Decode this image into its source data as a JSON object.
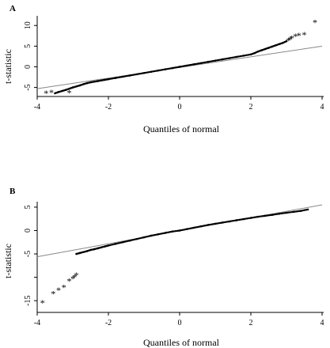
{
  "chart_data": [
    {
      "panel": "A",
      "type": "scatter",
      "title": "",
      "xlabel": "Quantiles of normal",
      "ylabel": "t-statistic",
      "xlim": [
        -4,
        4
      ],
      "ylim": [
        -6.8,
        11
      ],
      "xticks": [
        -4,
        -2,
        0,
        2,
        4
      ],
      "yticks": [
        -5,
        0,
        5,
        10
      ],
      "reference_line": {
        "x": [
          -4,
          4
        ],
        "y": [
          -5.3,
          5.0
        ]
      },
      "bulk_points": {
        "x": [
          -3.5,
          -3.4,
          -3.3,
          -3.2,
          -3.1,
          -3.0,
          -2.9,
          -2.8,
          -2.7,
          -2.6,
          -2.5,
          -2.4,
          -2.3,
          -2.2,
          -2.1,
          -2.0,
          -1.8,
          -1.6,
          -1.4,
          -1.2,
          -1.0,
          -0.8,
          -0.6,
          -0.4,
          -0.2,
          0.0,
          0.2,
          0.4,
          0.6,
          0.8,
          1.0,
          1.2,
          1.4,
          1.6,
          1.8,
          2.0,
          2.1,
          2.2,
          2.3,
          2.4,
          2.5,
          2.6,
          2.7,
          2.8,
          2.9,
          3.0
        ],
        "y": [
          -6.4,
          -6.1,
          -5.85,
          -5.6,
          -5.3,
          -5.0,
          -4.75,
          -4.5,
          -4.2,
          -3.95,
          -3.75,
          -3.6,
          -3.45,
          -3.3,
          -3.15,
          -3.0,
          -2.7,
          -2.4,
          -2.1,
          -1.8,
          -1.5,
          -1.2,
          -0.9,
          -0.6,
          -0.3,
          0.0,
          0.3,
          0.6,
          0.9,
          1.2,
          1.5,
          1.8,
          2.1,
          2.4,
          2.7,
          3.0,
          3.3,
          3.7,
          4.0,
          4.3,
          4.6,
          4.9,
          5.2,
          5.5,
          5.8,
          6.2
        ]
      },
      "outlier_points": {
        "marker": "*",
        "x": [
          -3.75,
          -3.6,
          -3.1,
          3.05,
          3.1,
          3.15,
          3.25,
          3.35,
          3.5,
          3.8
        ],
        "y": [
          -6.4,
          -6.2,
          -6.3,
          6.3,
          6.6,
          6.9,
          7.4,
          7.6,
          7.7,
          10.7
        ]
      }
    },
    {
      "panel": "B",
      "type": "scatter",
      "title": "",
      "xlabel": "Quantiles of normal",
      "ylabel": "t-statistic",
      "xlim": [
        -4,
        4
      ],
      "ylim": [
        -17,
        6
      ],
      "xticks": [
        -4,
        -2,
        0,
        2,
        4
      ],
      "yticks": [
        -15,
        -10,
        -5,
        0,
        5
      ],
      "ytick_labels": [
        "-15",
        "",
        "-5",
        "0",
        "5"
      ],
      "reference_line": {
        "x": [
          -4,
          4
        ],
        "y": [
          -5.6,
          5.5
        ]
      },
      "bulk_points": {
        "x": [
          -2.9,
          -2.8,
          -2.7,
          -2.6,
          -2.5,
          -2.4,
          -2.3,
          -2.2,
          -2.1,
          -2.0,
          -1.8,
          -1.6,
          -1.4,
          -1.2,
          -1.0,
          -0.8,
          -0.6,
          -0.4,
          -0.2,
          0.0,
          0.2,
          0.4,
          0.6,
          0.8,
          1.0,
          1.2,
          1.4,
          1.6,
          1.8,
          2.0,
          2.2,
          2.4,
          2.6,
          2.8,
          3.0,
          3.2,
          3.4,
          3.6
        ],
        "y": [
          -5.0,
          -4.8,
          -4.6,
          -4.4,
          -4.15,
          -4.0,
          -3.8,
          -3.6,
          -3.4,
          -3.2,
          -2.85,
          -2.5,
          -2.15,
          -1.8,
          -1.45,
          -1.1,
          -0.8,
          -0.5,
          -0.2,
          0.0,
          0.3,
          0.6,
          0.9,
          1.2,
          1.45,
          1.7,
          1.95,
          2.2,
          2.45,
          2.7,
          2.95,
          3.15,
          3.35,
          3.6,
          3.8,
          4.0,
          4.2,
          4.5
        ]
      },
      "outlier_points": {
        "marker": "*",
        "x": [
          -3.85,
          -3.55,
          -3.4,
          -3.25,
          -3.1,
          -3.0,
          -2.95,
          -2.9
        ],
        "y": [
          -15.5,
          -13.5,
          -12.8,
          -12.2,
          -10.8,
          -10.3,
          -10.0,
          -9.6
        ]
      }
    }
  ],
  "panels": {
    "a": {
      "letter": "A",
      "ylabel": "t-statistic",
      "xlabel": "Quantiles of normal"
    },
    "b": {
      "letter": "B",
      "ylabel": "t-statistic",
      "xlabel": "Quantiles of normal"
    }
  }
}
